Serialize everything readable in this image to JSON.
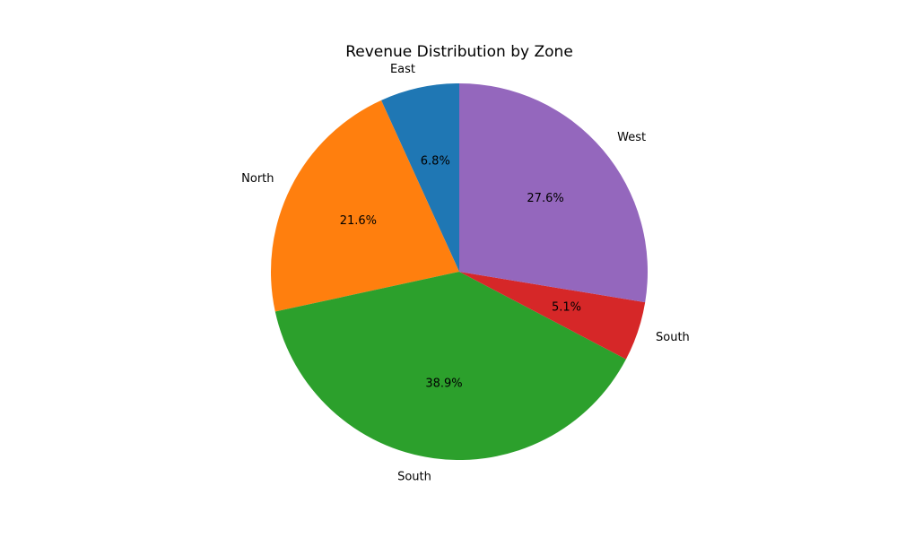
{
  "chart_data": {
    "type": "pie",
    "title": "Revenue Distribution by Zone",
    "start_angle_deg": 90,
    "direction": "counterclockwise",
    "slices": [
      {
        "label": "East",
        "percent": 6.8,
        "pct_label": "6.8%",
        "color": "#1f77b4"
      },
      {
        "label": "North",
        "percent": 21.6,
        "pct_label": "21.6%",
        "color": "#ff7f0e"
      },
      {
        "label": "South",
        "percent": 38.9,
        "pct_label": "38.9%",
        "color": "#2ca02c"
      },
      {
        "label": "South",
        "percent": 5.1,
        "pct_label": "5.1%",
        "color": "#d62728"
      },
      {
        "label": "West",
        "percent": 27.6,
        "pct_label": "27.6%",
        "color": "#9467bd"
      }
    ]
  }
}
